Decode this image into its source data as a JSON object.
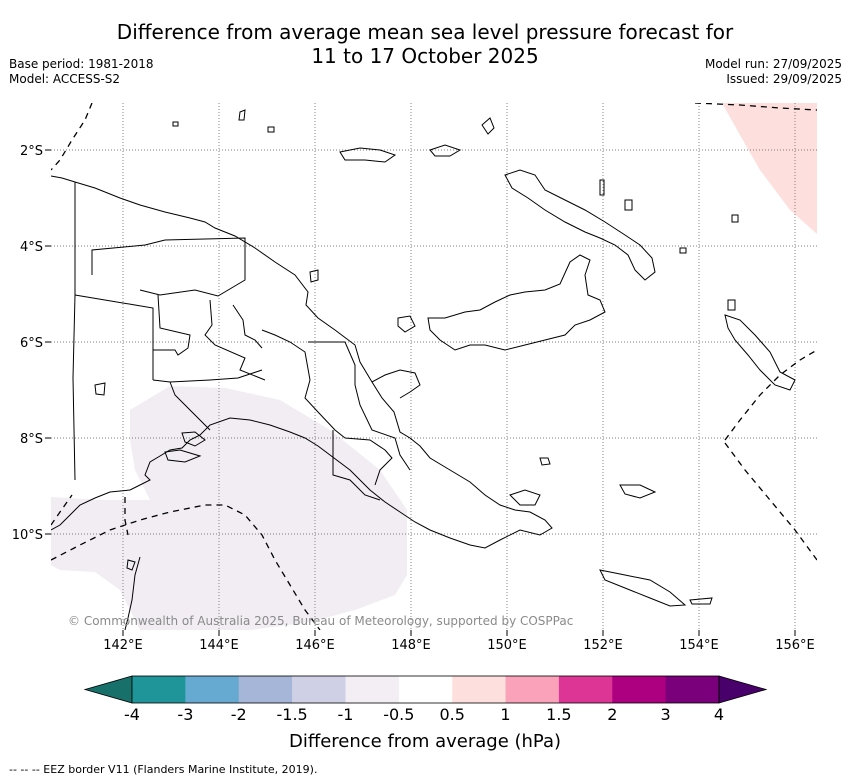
{
  "header": {
    "title_line1": "Difference from average mean sea level pressure forecast for",
    "title_line2": "11 to 17 October 2025",
    "base_period": "Base period: 1981-2018",
    "model": "Model: ACCESS-S2",
    "model_run": "Model run: 27/09/2025",
    "issued": "Issued: 29/09/2025"
  },
  "map": {
    "copyright": "© Commonwealth of Australia 2025, Bureau of Meteorology, supported by COSPPac",
    "lat_labels": [
      "2°S",
      "4°S",
      "6°S",
      "8°S",
      "10°S"
    ],
    "lon_labels": [
      "142°E",
      "144°E",
      "146°E",
      "148°E",
      "150°E",
      "152°E",
      "154°E",
      "156°E"
    ],
    "lon_range": [
      140.5,
      156.5
    ],
    "lat_range": [
      -1.0,
      -12.0
    ],
    "grid": true,
    "anomaly_regions": [
      {
        "category": "0.5 to 1",
        "location": "north-east corner"
      },
      {
        "category": "-1 to -0.5",
        "location": "Gulf of Papua / Torres Strait"
      }
    ]
  },
  "colorbar": {
    "title": "Difference from average (hPa)",
    "tick_labels": [
      "-4",
      "-3",
      "-2",
      "-1.5",
      "-1",
      "-0.5",
      "0.5",
      "1",
      "1.5",
      "2",
      "3",
      "4"
    ],
    "colors": [
      "#18706a",
      "#1f9499",
      "#66a9d1",
      "#a5b6d8",
      "#cfd0e6",
      "#f2eef4",
      "#ffffff",
      "#fde0de",
      "#f9a2b9",
      "#dd3596",
      "#ac0080",
      "#79007a",
      "#48006a"
    ]
  },
  "footnote": "-- -- -- EEZ border V11 (Flanders Marine Institute, 2019)."
}
